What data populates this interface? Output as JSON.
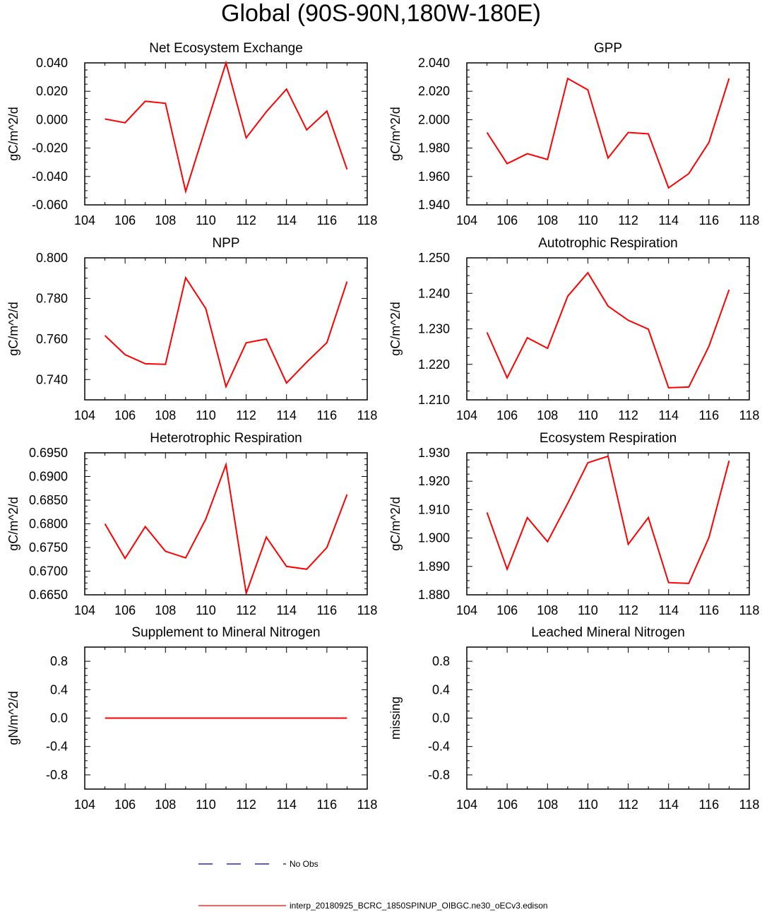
{
  "title": "Global (90S-90N,180W-180E)",
  "legend": [
    {
      "label": "No Obs",
      "color": "#000080",
      "style": "dashed"
    },
    {
      "label": "interp_20180925_BCRC_1850SPINUP_OIBGC.ne30_oECv3.edison",
      "color": "#ff0000",
      "style": "solid"
    }
  ],
  "chart_data": [
    {
      "type": "line",
      "title": "Net Ecosystem Exchange",
      "ylabel": "gC/m^2/d",
      "xlim": [
        104,
        118
      ],
      "ylim": [
        -0.06,
        0.04
      ],
      "xticks": [
        "104",
        "106",
        "108",
        "110",
        "112",
        "114",
        "116",
        "118"
      ],
      "yticks": [
        "-0.060",
        "-0.040",
        "-0.020",
        "0.000",
        "0.020",
        "0.040"
      ],
      "series": [
        {
          "color": "#ff0000",
          "x": [
            105,
            106,
            107,
            108,
            109,
            110,
            111,
            112,
            113,
            114,
            115,
            116,
            117
          ],
          "values": [
            0.0005,
            -0.0022,
            0.013,
            0.0115,
            -0.0505,
            -0.0052,
            0.04,
            -0.0128,
            0.0055,
            0.0215,
            -0.0072,
            0.006,
            -0.035
          ]
        }
      ]
    },
    {
      "type": "line",
      "title": "GPP",
      "ylabel": "gC/m^2/d",
      "xlim": [
        104,
        118
      ],
      "ylim": [
        1.94,
        2.04
      ],
      "xticks": [
        "104",
        "106",
        "108",
        "110",
        "112",
        "114",
        "116",
        "118"
      ],
      "yticks": [
        "1.940",
        "1.960",
        "1.980",
        "2.000",
        "2.020",
        "2.040"
      ],
      "series": [
        {
          "color": "#ff0000",
          "x": [
            105,
            106,
            107,
            108,
            109,
            110,
            111,
            112,
            113,
            114,
            115,
            116,
            117
          ],
          "values": [
            1.991,
            1.969,
            1.976,
            1.972,
            2.029,
            2.021,
            1.973,
            1.991,
            1.99,
            1.952,
            1.962,
            1.984,
            2.029
          ]
        }
      ]
    },
    {
      "type": "line",
      "title": "NPP",
      "ylabel": "gC/m^2/d",
      "xlim": [
        104,
        118
      ],
      "ylim": [
        0.73,
        0.8
      ],
      "xticks": [
        "104",
        "106",
        "108",
        "110",
        "112",
        "114",
        "116",
        "118"
      ],
      "yticks": [
        "0.740",
        "0.760",
        "0.780",
        "0.800"
      ],
      "series": [
        {
          "color": "#ff0000",
          "x": [
            105,
            106,
            107,
            108,
            109,
            110,
            111,
            112,
            113,
            114,
            115,
            116,
            117
          ],
          "values": [
            0.7617,
            0.7523,
            0.7478,
            0.7475,
            0.7902,
            0.775,
            0.7365,
            0.7581,
            0.76,
            0.7383,
            0.7486,
            0.7582,
            0.7883
          ]
        }
      ]
    },
    {
      "type": "line",
      "title": "Autotrophic Respiration",
      "ylabel": "gC/m^2/d",
      "xlim": [
        104,
        118
      ],
      "ylim": [
        1.21,
        1.25
      ],
      "xticks": [
        "104",
        "106",
        "108",
        "110",
        "112",
        "114",
        "116",
        "118"
      ],
      "yticks": [
        "1.210",
        "1.220",
        "1.230",
        "1.240",
        "1.250"
      ],
      "series": [
        {
          "color": "#ff0000",
          "x": [
            105,
            106,
            107,
            108,
            109,
            110,
            111,
            112,
            113,
            114,
            115,
            116,
            117
          ],
          "values": [
            1.229,
            1.2162,
            1.2275,
            1.2245,
            1.2392,
            1.2458,
            1.2364,
            1.2324,
            1.2299,
            1.2134,
            1.2136,
            1.2251,
            1.241
          ]
        }
      ]
    },
    {
      "type": "line",
      "title": "Heterotrophic Respiration",
      "ylabel": "gC/m^2/d",
      "xlim": [
        104,
        118
      ],
      "ylim": [
        0.665,
        0.695
      ],
      "xticks": [
        "104",
        "106",
        "108",
        "110",
        "112",
        "114",
        "116",
        "118"
      ],
      "yticks": [
        "0.6650",
        "0.6700",
        "0.6750",
        "0.6800",
        "0.6850",
        "0.6900",
        "0.6950"
      ],
      "series": [
        {
          "color": "#ff0000",
          "x": [
            105,
            106,
            107,
            108,
            109,
            110,
            111,
            112,
            113,
            114,
            115,
            116,
            117
          ],
          "values": [
            0.68,
            0.6727,
            0.6794,
            0.6742,
            0.6728,
            0.681,
            0.6925,
            0.6653,
            0.6772,
            0.671,
            0.6704,
            0.675,
            0.6862
          ]
        }
      ]
    },
    {
      "type": "line",
      "title": "Ecosystem Respiration",
      "ylabel": "gC/m^2/d",
      "xlim": [
        104,
        118
      ],
      "ylim": [
        1.88,
        1.93
      ],
      "xticks": [
        "104",
        "106",
        "108",
        "110",
        "112",
        "114",
        "116",
        "118"
      ],
      "yticks": [
        "1.880",
        "1.890",
        "1.900",
        "1.910",
        "1.920",
        "1.930"
      ],
      "series": [
        {
          "color": "#ff0000",
          "x": [
            105,
            106,
            107,
            108,
            109,
            110,
            111,
            112,
            113,
            114,
            115,
            116,
            117
          ],
          "values": [
            1.909,
            1.889,
            1.9072,
            1.8987,
            1.9122,
            1.9265,
            1.9288,
            1.8978,
            1.9072,
            1.8843,
            1.884,
            1.9002,
            1.9272
          ]
        }
      ]
    },
    {
      "type": "line",
      "title": "Supplement to Mineral Nitrogen",
      "ylabel": "gN/m^2/d",
      "xlim": [
        104,
        118
      ],
      "ylim": [
        -1.0,
        1.0
      ],
      "xticks": [
        "104",
        "106",
        "108",
        "110",
        "112",
        "114",
        "116",
        "118"
      ],
      "yticks": [
        "-0.8",
        "-0.4",
        "0.0",
        "0.4",
        "0.8"
      ],
      "series": [
        {
          "color": "#ff0000",
          "x": [
            105,
            106,
            107,
            108,
            109,
            110,
            111,
            112,
            113,
            114,
            115,
            116,
            117
          ],
          "values": [
            0,
            0,
            0,
            0,
            0,
            0,
            0,
            0,
            0,
            0,
            0,
            0,
            0
          ]
        }
      ]
    },
    {
      "type": "line",
      "title": "Leached Mineral Nitrogen",
      "ylabel": "missing",
      "xlim": [
        104,
        118
      ],
      "ylim": [
        -1.0,
        1.0
      ],
      "xticks": [
        "104",
        "106",
        "108",
        "110",
        "112",
        "114",
        "116",
        "118"
      ],
      "yticks": [
        "-0.8",
        "-0.4",
        "0.0",
        "0.4",
        "0.8"
      ],
      "series": []
    }
  ]
}
